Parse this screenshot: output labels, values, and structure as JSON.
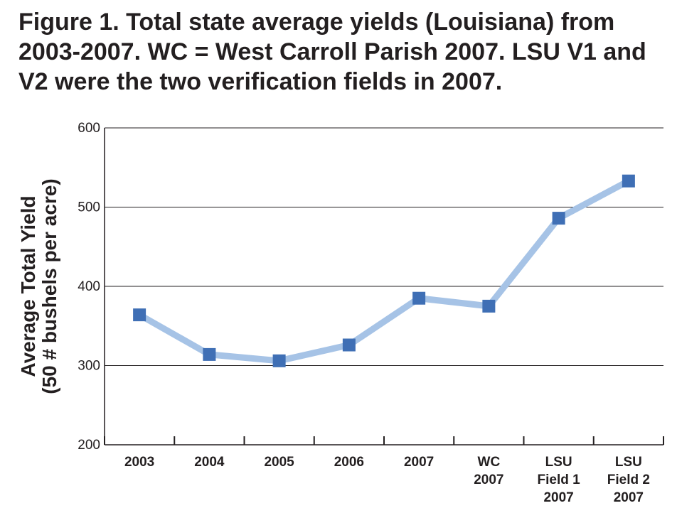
{
  "chart_data": {
    "type": "line",
    "title": "Figure 1. Total state average yields (Louisiana) from 2003-2007. WC = West Carroll Parish 2007. LSU V1 and V2 were the two verification fields in 2007.",
    "ylabel_lines": [
      "Average Total Yield",
      "(50 # bushels per acre)"
    ],
    "categories": [
      [
        "2003"
      ],
      [
        "2004"
      ],
      [
        "2005"
      ],
      [
        "2006"
      ],
      [
        "2007"
      ],
      [
        "WC",
        "2007"
      ],
      [
        "LSU",
        "Field 1",
        "2007"
      ],
      [
        "LSU",
        "Field 2",
        "2007"
      ]
    ],
    "values": [
      364,
      314,
      306,
      326,
      385,
      375,
      486,
      533
    ],
    "ylim": [
      200,
      600
    ],
    "yticks": [
      200,
      300,
      400,
      500,
      600
    ],
    "grid": true,
    "legend": "none",
    "colors": {
      "line": "#a6c3e6",
      "marker": "#3f6fb5",
      "grid": "#231f20",
      "text": "#231f20"
    }
  }
}
